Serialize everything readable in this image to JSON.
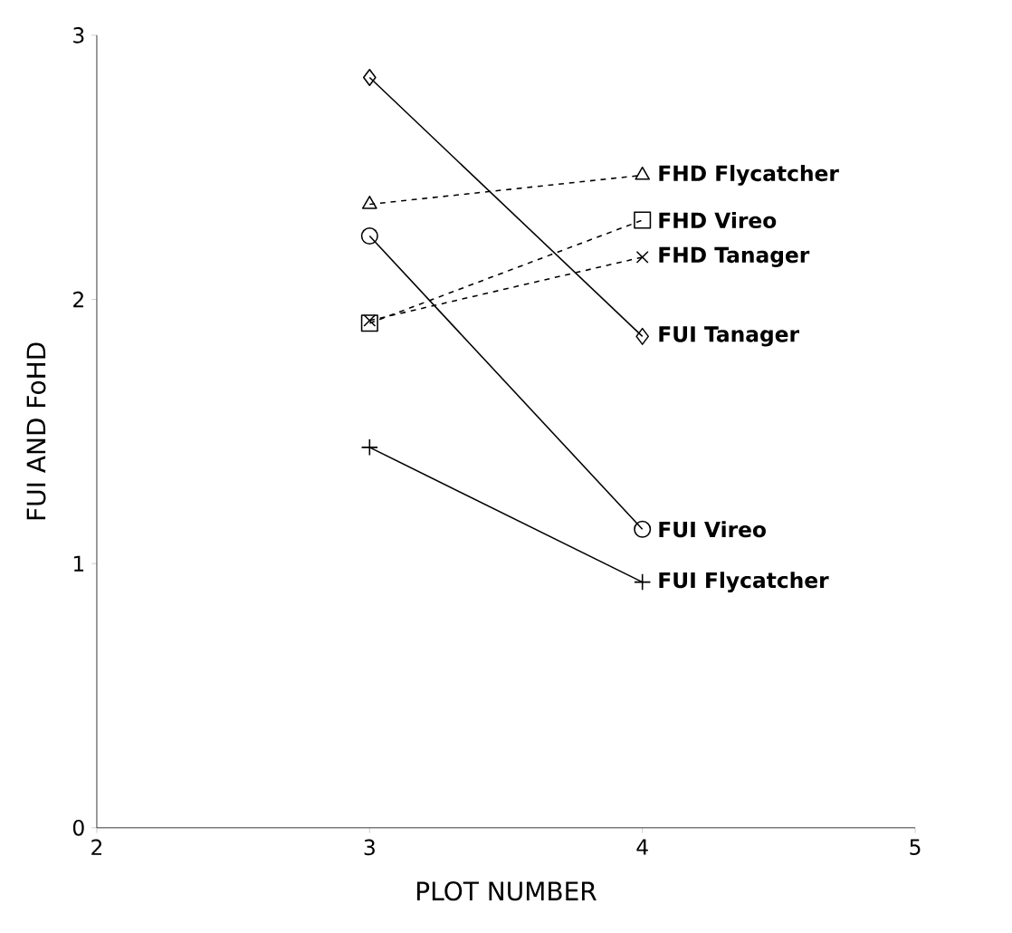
{
  "chart_data": {
    "type": "line",
    "xlabel": "PLOT NUMBER",
    "ylabel": "FUI AND FoHD",
    "x": [
      3,
      4
    ],
    "xlim": [
      2,
      5
    ],
    "xticks": [
      2,
      3,
      4,
      5
    ],
    "ylim": [
      0,
      3
    ],
    "yticks": [
      0,
      1,
      2,
      3
    ],
    "grid": false,
    "legend": false,
    "series": [
      {
        "name": "FHD Flycatcher",
        "color": "#000000",
        "values": [
          2.36,
          2.47
        ],
        "marker": "triangle",
        "line_style": "dashed"
      },
      {
        "name": "FHD Vireo",
        "color": "#000000",
        "values": [
          1.91,
          2.3
        ],
        "marker": "square",
        "line_style": "dashed"
      },
      {
        "name": "FHD Tanager",
        "color": "#000000",
        "values": [
          1.92,
          2.16
        ],
        "marker": "cross",
        "line_style": "dashed"
      },
      {
        "name": "FUI Tanager",
        "color": "#000000",
        "values": [
          2.84,
          1.86
        ],
        "marker": "diamond",
        "line_style": "solid"
      },
      {
        "name": "FUI Vireo",
        "color": "#000000",
        "values": [
          2.24,
          1.13
        ],
        "marker": "circle",
        "line_style": "solid"
      },
      {
        "name": "FUI Flycatcher",
        "color": "#000000",
        "values": [
          1.44,
          0.93
        ],
        "marker": "plus",
        "line_style": "solid"
      }
    ]
  }
}
